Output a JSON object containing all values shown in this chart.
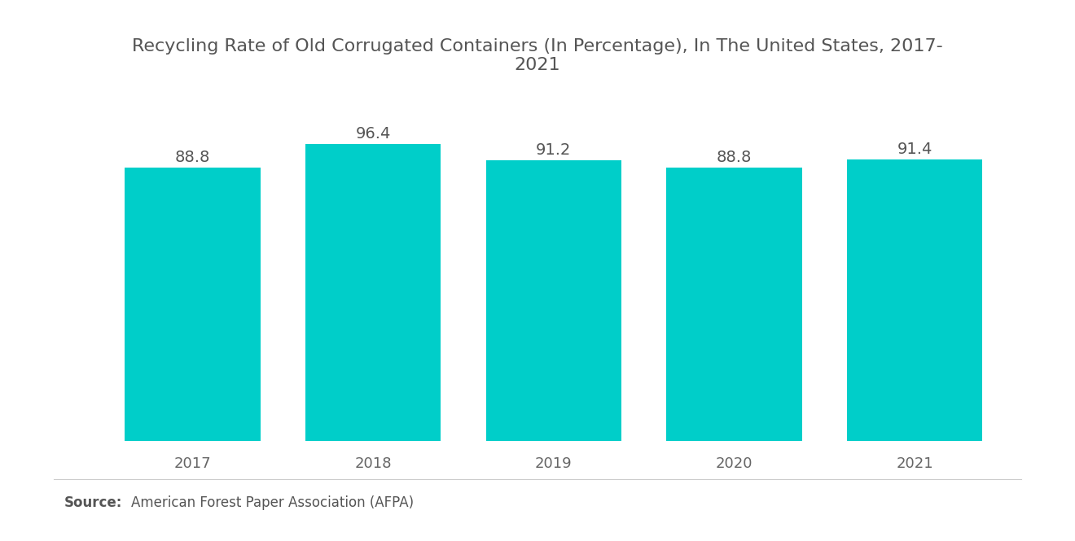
{
  "title": "Recycling Rate of Old Corrugated Containers (In Percentage), In The United States, 2017-\n2021",
  "categories": [
    "2017",
    "2018",
    "2019",
    "2020",
    "2021"
  ],
  "values": [
    88.8,
    96.4,
    91.2,
    88.8,
    91.4
  ],
  "bar_color": "#00CEC9",
  "label_color": "#555555",
  "title_color": "#555555",
  "tick_color": "#666666",
  "background_color": "#ffffff",
  "ylim": [
    0,
    108
  ],
  "bar_width": 0.75,
  "source_bold": "Source:",
  "source_text": "  American Forest Paper Association (AFPA)",
  "title_fontsize": 16,
  "label_fontsize": 14,
  "tick_fontsize": 13,
  "source_fontsize": 12
}
